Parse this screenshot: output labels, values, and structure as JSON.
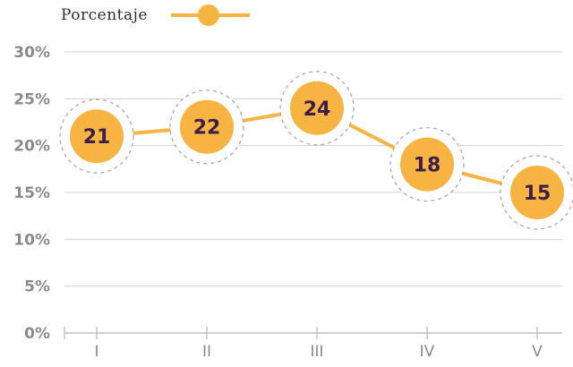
{
  "colors": {
    "series": "#f7b443",
    "halo": "#a9a9a9",
    "grid": "#d3d3d3",
    "axis": "#b5b5b5",
    "tick_text": "#8a8a8a",
    "label_text": "#3b1f4a",
    "legend_text": "#3b2146"
  },
  "chart_data": {
    "type": "line",
    "categories": [
      "I",
      "II",
      "III",
      "IV",
      "V"
    ],
    "series": [
      {
        "name": "Porcentaje",
        "values": [
          21,
          22,
          24,
          18,
          15
        ]
      }
    ],
    "yticks": [
      "0%",
      "5%",
      "10%",
      "15%",
      "20%",
      "25%",
      "30%"
    ],
    "ytick_values": [
      0,
      5,
      10,
      15,
      20,
      25,
      30
    ],
    "ylim": [
      0,
      30
    ],
    "grid": true,
    "legend_position": "top-left",
    "data_labels": [
      "21",
      "22",
      "24",
      "18",
      "15"
    ],
    "xlabel": "",
    "ylabel": ""
  }
}
